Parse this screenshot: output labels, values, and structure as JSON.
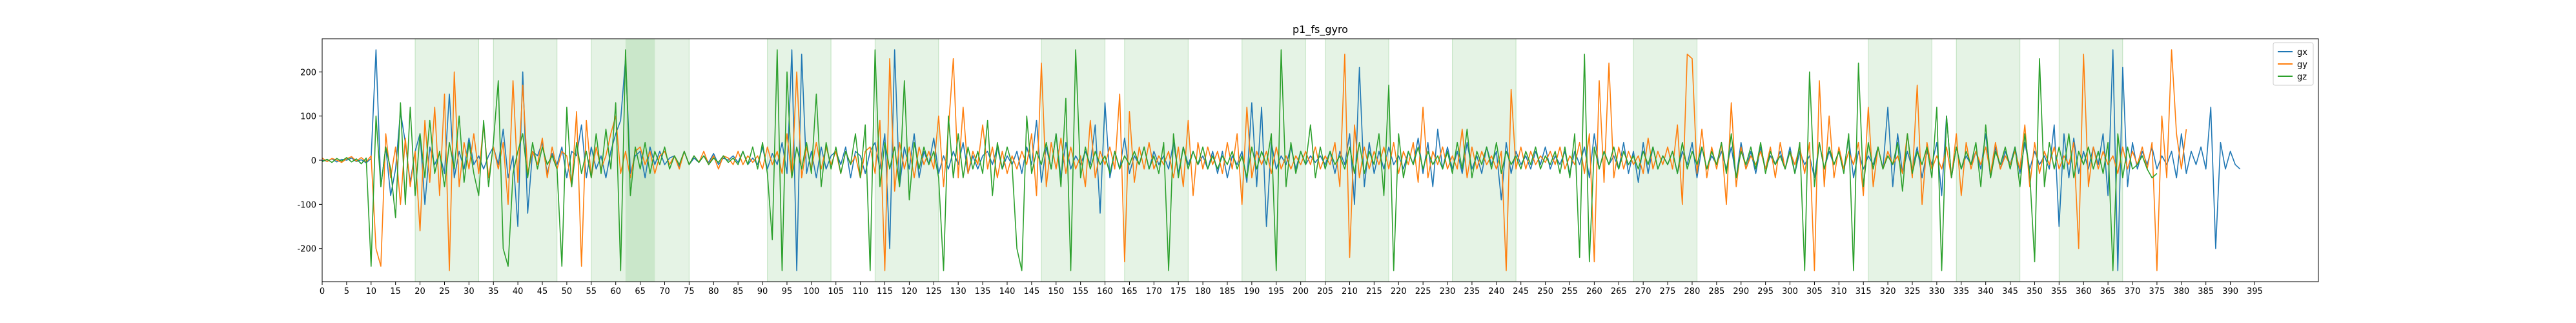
{
  "chart_data": {
    "type": "line",
    "title": "p1_fs_gyro",
    "xlabel": "",
    "ylabel": "",
    "xlim": [
      0,
      408
    ],
    "ylim": [
      -275,
      275
    ],
    "xticks": [
      0,
      5,
      10,
      15,
      20,
      25,
      30,
      35,
      40,
      45,
      50,
      55,
      60,
      65,
      70,
      75,
      80,
      85,
      90,
      95,
      100,
      105,
      110,
      115,
      120,
      125,
      130,
      135,
      140,
      145,
      150,
      155,
      160,
      165,
      170,
      175,
      180,
      185,
      190,
      195,
      200,
      205,
      210,
      215,
      220,
      225,
      230,
      235,
      240,
      245,
      250,
      255,
      260,
      265,
      270,
      275,
      280,
      285,
      290,
      295,
      300,
      305,
      310,
      315,
      320,
      325,
      330,
      335,
      340,
      345,
      350,
      355,
      360,
      365,
      370,
      375,
      380,
      385,
      390,
      395
    ],
    "yticks": [
      -200,
      -100,
      0,
      100,
      200
    ],
    "grid": false,
    "legend_position": "upper-right",
    "shaded_regions": [
      [
        19,
        32
      ],
      [
        35,
        48
      ],
      [
        55,
        75
      ],
      [
        91,
        104
      ],
      [
        113,
        126
      ],
      [
        147,
        160
      ],
      [
        164,
        177
      ],
      [
        188,
        201
      ],
      [
        205,
        218
      ],
      [
        231,
        244
      ],
      [
        268,
        281
      ],
      [
        316,
        329
      ],
      [
        334,
        347
      ],
      [
        355,
        368
      ]
    ],
    "dark_region": [
      62,
      68
    ],
    "region_color": "#2ca02c",
    "series": [
      {
        "name": "gx",
        "color": "#1f77b4",
        "values": [
          0,
          -2,
          3,
          -4,
          2,
          0,
          5,
          -3,
          1,
          -6,
          4,
          250,
          -60,
          30,
          -80,
          -20,
          110,
          40,
          -50,
          20,
          60,
          -100,
          30,
          -10,
          15,
          -30,
          150,
          -40,
          20,
          -20,
          50,
          -10,
          10,
          -20,
          10,
          30,
          -10,
          70,
          -40,
          10,
          -150,
          200,
          -120,
          20,
          10,
          40,
          -30,
          15,
          -10,
          30,
          -40,
          20,
          10,
          80,
          -40,
          30,
          -20,
          10,
          -40,
          20,
          60,
          90,
          230,
          -30,
          10,
          20,
          -40,
          30,
          -10,
          20,
          -10,
          5,
          10,
          -15,
          20,
          -10,
          5,
          -5,
          10,
          -5,
          15,
          -10,
          5,
          0,
          10,
          -5,
          20,
          -10,
          5,
          -10,
          30,
          -20,
          15,
          -10,
          40,
          -30,
          250,
          -250,
          240,
          -30,
          20,
          -40,
          30,
          -20,
          10,
          20,
          -10,
          30,
          -40,
          20,
          10,
          -30,
          20,
          40,
          -20,
          60,
          -200,
          250,
          -60,
          30,
          -20,
          60,
          -40,
          20,
          -10,
          50,
          -30,
          10,
          -20,
          20,
          -10,
          40,
          -30,
          10,
          -20,
          10,
          20,
          -10,
          30,
          -20,
          10,
          -10,
          20,
          -30,
          30,
          -10,
          90,
          -50,
          30,
          -20,
          60,
          -40,
          40,
          -20,
          10,
          -10,
          20,
          -10,
          80,
          -120,
          130,
          -40,
          20,
          -20,
          50,
          -30,
          10,
          -10,
          30,
          -20,
          20,
          -10,
          10,
          -20,
          40,
          -30,
          30,
          -10,
          20,
          -10,
          10,
          -20,
          20,
          -30,
          20,
          -40,
          10,
          -10,
          20,
          -50,
          130,
          -60,
          120,
          -150,
          40,
          -20,
          10,
          -10,
          30,
          -20,
          20,
          -10,
          10,
          -5,
          10,
          -10,
          20,
          -30,
          20,
          -10,
          60,
          -100,
          210,
          -60,
          40,
          -30,
          20,
          -20,
          30,
          -10,
          10,
          -20,
          20,
          -10,
          50,
          -30,
          40,
          -60,
          70,
          -20,
          30,
          -20,
          20,
          -30,
          40,
          -20,
          10,
          -30,
          30,
          -10,
          20,
          -90,
          40,
          -30,
          20,
          -10,
          10,
          -20,
          20,
          -10,
          30,
          -20,
          10,
          -10,
          20,
          -30,
          20,
          -10,
          30,
          -40,
          60,
          -20,
          20,
          -10,
          10,
          -20,
          40,
          -30,
          20,
          -50,
          40,
          -30,
          30,
          -20,
          10,
          -10,
          20,
          -30,
          20,
          -10,
          40,
          -40,
          30,
          -20,
          10,
          -10,
          20,
          -20,
          30,
          -40,
          40,
          -20,
          20,
          -30,
          30,
          -20,
          10,
          -10,
          20,
          -20,
          30,
          -30,
          20,
          -10,
          10,
          -40,
          40,
          -20,
          20,
          -10,
          20,
          -20,
          50,
          -40,
          20,
          -20,
          10,
          -10,
          30,
          -20,
          120,
          -60,
          60,
          -30,
          20,
          -20,
          30,
          -40,
          20,
          -10,
          40,
          -80,
          100,
          -40,
          30,
          -20,
          10,
          -10,
          20,
          -20,
          60,
          -40,
          30,
          -20,
          20,
          -10,
          30,
          -30,
          40,
          -20,
          20,
          -10,
          10,
          -20,
          80,
          -150,
          60,
          -40,
          50,
          -30,
          20,
          -20,
          30,
          -10,
          60,
          -80,
          250,
          -250,
          210,
          -60,
          40,
          -20,
          20,
          -10,
          30,
          -20,
          10,
          -10,
          20,
          -40,
          60,
          -30,
          20,
          -10,
          30,
          -20,
          120,
          -200,
          40,
          -20,
          20,
          -10,
          -20
        ]
      },
      {
        "name": "gy",
        "color": "#ff7f0e",
        "values": [
          5,
          -3,
          4,
          0,
          -5,
          3,
          8,
          -2,
          6,
          -4,
          10,
          -200,
          -240,
          60,
          -40,
          30,
          -100,
          50,
          -60,
          20,
          -160,
          90,
          -50,
          120,
          -80,
          150,
          -250,
          200,
          -60,
          40,
          -20,
          60,
          -30,
          80,
          -40,
          30,
          -20,
          40,
          -100,
          180,
          -50,
          170,
          -30,
          20,
          -10,
          50,
          -40,
          30,
          -20,
          20,
          10,
          -60,
          110,
          -240,
          90,
          -40,
          30,
          -20,
          10,
          60,
          100,
          -30,
          20,
          -40,
          20,
          30,
          -10,
          20,
          -30,
          10,
          20,
          -10,
          10,
          -20,
          20,
          -10,
          10,
          -5,
          20,
          -10,
          10,
          -20,
          10,
          5,
          -10,
          20,
          -10,
          10,
          -5,
          10,
          -20,
          30,
          -10,
          20,
          -30,
          60,
          -40,
          200,
          -40,
          30,
          -20,
          40,
          -20,
          30,
          -10,
          20,
          -30,
          20,
          -10,
          10,
          -40,
          20,
          30,
          -30,
          90,
          -250,
          230,
          -70,
          40,
          -20,
          30,
          -40,
          30,
          -10,
          20,
          -20,
          100,
          -60,
          70,
          230,
          -40,
          120,
          -30,
          20,
          -10,
          80,
          -20,
          30,
          -40,
          20,
          -30,
          10,
          -20,
          20,
          -10,
          60,
          -80,
          220,
          -60,
          40,
          -20,
          50,
          -30,
          30,
          -20,
          10,
          -60,
          90,
          -40,
          20,
          -10,
          30,
          -20,
          150,
          -230,
          110,
          -50,
          30,
          -20,
          40,
          -20,
          10,
          -10,
          20,
          -40,
          30,
          -60,
          90,
          -80,
          40,
          -20,
          30,
          -10,
          20,
          -30,
          40,
          -20,
          60,
          -100,
          120,
          -40,
          20,
          -10,
          20,
          -30,
          30,
          -20,
          10,
          -20,
          10,
          -10,
          20,
          -10,
          30,
          -20,
          10,
          -10,
          40,
          -60,
          240,
          -220,
          80,
          -40,
          30,
          -20,
          20,
          -10,
          30,
          -20,
          40,
          -30,
          20,
          -10,
          40,
          -50,
          120,
          -40,
          20,
          -10,
          30,
          -20,
          10,
          -20,
          70,
          -40,
          30,
          -20,
          20,
          -10,
          10,
          -20,
          20,
          -250,
          160,
          -20,
          30,
          -20,
          20,
          -10,
          10,
          -5,
          20,
          -10,
          30,
          -20,
          10,
          -10,
          40,
          -30,
          60,
          -230,
          180,
          -50,
          220,
          -40,
          30,
          -20,
          20,
          -10,
          10,
          -30,
          50,
          -20,
          20,
          -10,
          30,
          -20,
          80,
          -100,
          240,
          230,
          -30,
          70,
          -40,
          30,
          -20,
          40,
          -100,
          130,
          -60,
          30,
          -20,
          10,
          -10,
          20,
          -20,
          30,
          -40,
          40,
          -20,
          20,
          -10,
          30,
          -30,
          40,
          -250,
          180,
          -60,
          100,
          -40,
          30,
          -20,
          20,
          -10,
          40,
          -80,
          120,
          -60,
          30,
          -20,
          20,
          -10,
          10,
          -30,
          60,
          -40,
          170,
          -100,
          40,
          -20,
          10,
          -20,
          30,
          -40,
          60,
          -80,
          40,
          -20,
          20,
          -10,
          30,
          -30,
          40,
          -20,
          10,
          -10,
          20,
          -20,
          80,
          -60,
          40,
          -30,
          20,
          -10,
          30,
          -20,
          10,
          -10,
          40,
          -200,
          240,
          -60,
          30,
          -20,
          20,
          -10,
          10,
          -30,
          30,
          -20,
          20,
          -10,
          30,
          -20,
          40,
          -250,
          100,
          -40,
          250,
          60,
          -20,
          70
        ]
      },
      {
        "name": "gz",
        "color": "#2ca02c",
        "values": [
          -3,
          2,
          -5,
          4,
          -2,
          6,
          -4,
          3,
          -8,
          5,
          -240,
          100,
          -60,
          30,
          -20,
          -130,
          130,
          -100,
          120,
          -80,
          60,
          -40,
          90,
          -30,
          20,
          -60,
          40,
          -20,
          100,
          -50,
          40,
          -30,
          -80,
          90,
          -60,
          40,
          180,
          -200,
          -240,
          -30,
          20,
          60,
          -40,
          40,
          -20,
          30,
          -10,
          10,
          -20,
          -240,
          120,
          -60,
          40,
          -30,
          20,
          -40,
          60,
          -30,
          70,
          -20,
          130,
          -250,
          250,
          -80,
          30,
          -20,
          40,
          -30,
          20,
          -10,
          30,
          -20,
          10,
          -10,
          20,
          -10,
          10,
          -5,
          10,
          -10,
          5,
          -5,
          10,
          -5,
          5,
          -10,
          20,
          -10,
          30,
          -20,
          40,
          -30,
          -180,
          250,
          -250,
          200,
          -40,
          30,
          -20,
          40,
          -30,
          150,
          -60,
          40,
          -20,
          30,
          -30,
          20,
          -10,
          60,
          -40,
          80,
          -250,
          250,
          -60,
          40,
          -20,
          30,
          -60,
          180,
          -90,
          40,
          -20,
          30,
          -10,
          20,
          -40,
          -250,
          100,
          -40,
          60,
          -40,
          30,
          -20,
          20,
          -30,
          90,
          -80,
          40,
          -20,
          30,
          -10,
          -200,
          -250,
          100,
          -30,
          20,
          -10,
          40,
          -20,
          60,
          -60,
          140,
          -250,
          250,
          -40,
          30,
          -20,
          20,
          -10,
          10,
          -30,
          20,
          -20,
          10,
          -10,
          20,
          -10,
          30,
          -20,
          10,
          -30,
          40,
          -250,
          60,
          -40,
          30,
          -20,
          20,
          -10,
          30,
          -20,
          10,
          -20,
          10,
          -10,
          20,
          -20,
          10,
          -40,
          30,
          -20,
          20,
          -10,
          60,
          -250,
          250,
          -60,
          40,
          -30,
          20,
          -10,
          80,
          -40,
          30,
          -20,
          20,
          -10,
          10,
          -20,
          30,
          -30,
          40,
          -30,
          20,
          -10,
          60,
          -80,
          170,
          -250,
          60,
          -40,
          20,
          -10,
          30,
          -20,
          20,
          -10,
          10,
          -20,
          20,
          -30,
          40,
          -20,
          70,
          -40,
          20,
          -10,
          30,
          -20,
          40,
          -30,
          20,
          -10,
          10,
          -20,
          20,
          -10,
          30,
          -20,
          10,
          -10,
          20,
          -30,
          30,
          -40,
          60,
          -220,
          240,
          -230,
          30,
          -20,
          20,
          -10,
          30,
          -20,
          20,
          -10,
          10,
          -20,
          20,
          -10,
          30,
          -20,
          10,
          -10,
          20,
          -30,
          40,
          -20,
          20,
          -10,
          30,
          -20,
          20,
          -10,
          40,
          -30,
          60,
          -40,
          20,
          -10,
          30,
          -20,
          40,
          -30,
          20,
          -10,
          10,
          -20,
          20,
          -30,
          40,
          -250,
          200,
          -60,
          40,
          -20,
          30,
          -10,
          20,
          -30,
          60,
          -250,
          220,
          -60,
          40,
          -20,
          30,
          -20,
          10,
          -10,
          40,
          -70,
          60,
          -30,
          20,
          -10,
          30,
          -40,
          120,
          -250,
          100,
          -40,
          30,
          -20,
          20,
          -10,
          40,
          -60,
          80,
          -40,
          20,
          -10,
          30,
          -20,
          30,
          -60,
          60,
          -30,
          -230,
          230,
          -60,
          40,
          -20,
          30,
          -20,
          60,
          -40,
          20,
          -10,
          30,
          -20,
          20,
          -30,
          40,
          -250,
          60,
          -40,
          30,
          -20,
          -10,
          10,
          -20,
          -40,
          -30
        ]
      }
    ]
  }
}
